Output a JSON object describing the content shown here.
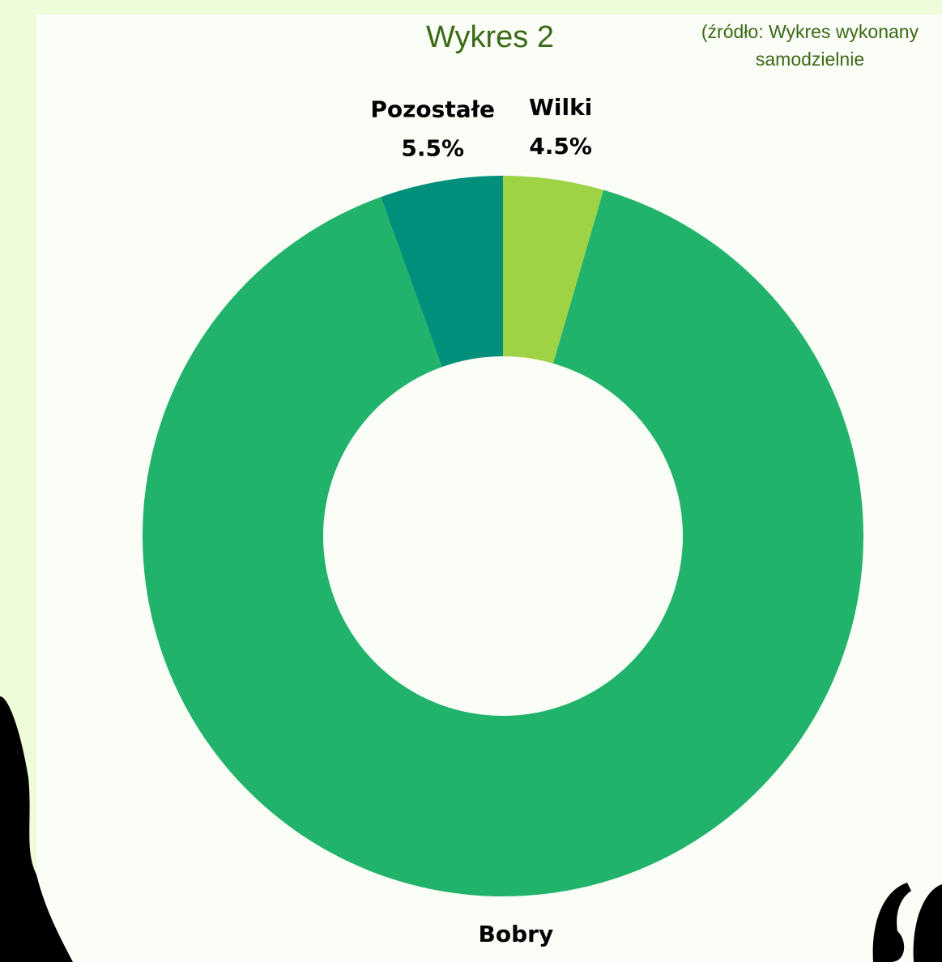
{
  "chart_data": {
    "type": "donut",
    "title": "Wykres 2",
    "note": "(źródło: Wykres wykonany samodzielnie",
    "categories": [
      "Wilki",
      "Bobry",
      "Pozostałe"
    ],
    "values": [
      4.5,
      90,
      5.5
    ],
    "value_labels": [
      "4.5%",
      null,
      "5.5%"
    ],
    "colors": [
      "#9ed346",
      "#21b36b",
      "#008f7a"
    ]
  }
}
